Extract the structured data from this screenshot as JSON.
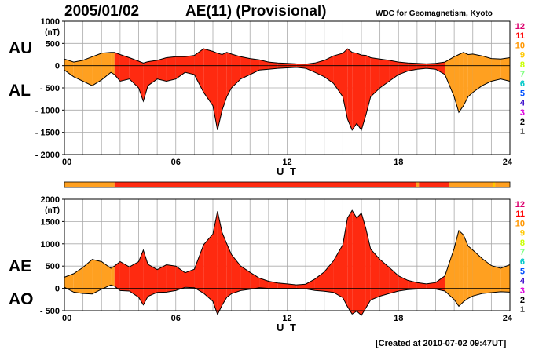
{
  "header": {
    "date": "2005/01/02",
    "index_title": "AE(11) (Provisional)",
    "org": "WDC for Geomagnetism, Kyoto",
    "created": "[Created at 2010-07-02 09:47UT]"
  },
  "colors": {
    "levels": [
      "#c8c8c8",
      "#646464",
      "#000000",
      "#dc00dc",
      "#3200c8",
      "#0050ff",
      "#00c8c8",
      "#80ff80",
      "#c8ff00",
      "#ffc800",
      "#ff9600",
      "#ff0000",
      "#dc006e"
    ],
    "fill_10": "#ffa020",
    "fill_11": "#ff2a10",
    "grid": "#aaaaaa"
  },
  "level_scale": [
    "12",
    "11",
    "10",
    "9",
    "8",
    "7",
    "6",
    "5",
    "4",
    "3",
    "2",
    "1"
  ],
  "chart_data": [
    {
      "type": "area",
      "panel": "AU/AL",
      "side_labels": [
        "AU",
        "AL"
      ],
      "y_unit": "(nT)",
      "ylim": [
        -2000,
        1000
      ],
      "yticks": [
        1000,
        500,
        0,
        -500,
        -1000,
        -1500,
        -2000
      ],
      "ytick_labels": [
        "1000",
        "500",
        "0",
        "- 500",
        "- 1000",
        "- 1500",
        "- 2000"
      ],
      "xlim": [
        0,
        24
      ],
      "xticks": [
        0,
        6,
        12,
        18,
        24
      ],
      "xtick_labels": [
        "00",
        "06",
        "12",
        "18",
        "24"
      ],
      "xlabel": "U T",
      "grid": true,
      "x": [
        0,
        0.5,
        1,
        1.5,
        2,
        2.5,
        2.7,
        3,
        3.5,
        4,
        4.25,
        4.5,
        5,
        5.5,
        6,
        6.5,
        7,
        7.5,
        8,
        8.25,
        8.5,
        8.75,
        9,
        9.5,
        10,
        10.5,
        11,
        11.5,
        12,
        12.5,
        13,
        13.5,
        14,
        14.5,
        15,
        15.25,
        15.5,
        15.75,
        16,
        16.25,
        16.5,
        17,
        17.5,
        18,
        18.5,
        19,
        19.5,
        20,
        20.5,
        21,
        21.25,
        21.5,
        21.75,
        22,
        22.5,
        23,
        23.5,
        24
      ],
      "series": [
        {
          "name": "AU",
          "values": [
            150,
            80,
            120,
            200,
            280,
            300,
            300,
            250,
            180,
            100,
            60,
            90,
            120,
            180,
            200,
            200,
            230,
            380,
            320,
            280,
            250,
            300,
            260,
            200,
            160,
            130,
            80,
            60,
            50,
            40,
            35,
            60,
            120,
            220,
            280,
            380,
            300,
            280,
            240,
            230,
            180,
            150,
            120,
            80,
            60,
            50,
            40,
            50,
            80,
            200,
            250,
            300,
            250,
            260,
            220,
            160,
            150,
            180
          ]
        },
        {
          "name": "AL",
          "values": [
            -100,
            -250,
            -350,
            -450,
            -320,
            -150,
            -200,
            -350,
            -300,
            -500,
            -800,
            -450,
            -300,
            -350,
            -300,
            -150,
            -200,
            -600,
            -900,
            -1450,
            -1000,
            -700,
            -500,
            -300,
            -200,
            -100,
            -80,
            -60,
            -50,
            -40,
            -60,
            -150,
            -250,
            -400,
            -700,
            -1200,
            -1450,
            -1300,
            -1450,
            -1100,
            -700,
            -500,
            -350,
            -200,
            -120,
            -80,
            -60,
            -80,
            -200,
            -700,
            -1050,
            -900,
            -700,
            -600,
            -450,
            -350,
            -300,
            -350
          ]
        }
      ]
    },
    {
      "type": "area",
      "panel": "AE/AO",
      "side_labels": [
        "AE",
        "AO"
      ],
      "y_unit": "(nT)",
      "ylim": [
        -500,
        2000
      ],
      "yticks": [
        2000,
        1500,
        1000,
        500,
        0,
        -500
      ],
      "ytick_labels": [
        "2000",
        "1500",
        "1000",
        "500",
        "0",
        "- 500"
      ],
      "xlim": [
        0,
        24
      ],
      "xticks": [
        0,
        6,
        12,
        18,
        24
      ],
      "xtick_labels": [
        "00",
        "06",
        "12",
        "18",
        "24"
      ],
      "xlabel": "U T",
      "grid": true,
      "x": [
        0,
        0.5,
        1,
        1.5,
        2,
        2.5,
        2.7,
        3,
        3.5,
        4,
        4.25,
        4.5,
        5,
        5.5,
        6,
        6.5,
        7,
        7.5,
        8,
        8.25,
        8.5,
        8.75,
        9,
        9.5,
        10,
        10.5,
        11,
        11.5,
        12,
        12.5,
        13,
        13.5,
        14,
        14.5,
        15,
        15.25,
        15.5,
        15.75,
        16,
        16.25,
        16.5,
        17,
        17.5,
        18,
        18.5,
        19,
        19.5,
        20,
        20.5,
        21,
        21.25,
        21.5,
        21.75,
        22,
        22.5,
        23,
        23.5,
        24
      ],
      "series": [
        {
          "name": "AE",
          "values": [
            250,
            330,
            470,
            650,
            600,
            450,
            500,
            600,
            480,
            600,
            860,
            540,
            420,
            530,
            500,
            350,
            430,
            980,
            1220,
            1730,
            1250,
            1000,
            760,
            500,
            360,
            230,
            160,
            120,
            100,
            80,
            95,
            210,
            370,
            620,
            980,
            1580,
            1750,
            1580,
            1690,
            1330,
            880,
            650,
            470,
            280,
            180,
            130,
            100,
            130,
            280,
            900,
            1300,
            1200,
            950,
            860,
            670,
            510,
            450,
            530
          ]
        },
        {
          "name": "AO",
          "values": [
            25,
            -85,
            -115,
            -125,
            -20,
            75,
            50,
            -50,
            -60,
            -200,
            -370,
            -180,
            -90,
            -85,
            -50,
            25,
            15,
            -110,
            -290,
            -585,
            -375,
            -200,
            -120,
            -50,
            -20,
            15,
            0,
            0,
            0,
            0,
            -12,
            -45,
            -65,
            -90,
            -210,
            -410,
            -575,
            -510,
            -605,
            -435,
            -260,
            -175,
            -115,
            -60,
            -30,
            -15,
            -10,
            -15,
            -60,
            -250,
            -400,
            -300,
            -225,
            -170,
            -115,
            -95,
            -75,
            -85
          ]
        }
      ]
    }
  ],
  "activity_bar": {
    "segments": [
      {
        "from": 0,
        "to": 2.7,
        "level": 10
      },
      {
        "from": 2.7,
        "to": 18.95,
        "level": 11
      },
      {
        "from": 18.95,
        "to": 19.1,
        "level": 10
      },
      {
        "from": 19.1,
        "to": 20.7,
        "level": 11
      },
      {
        "from": 20.7,
        "to": 23.1,
        "level": 10
      },
      {
        "from": 23.1,
        "to": 23.2,
        "level": 9
      },
      {
        "from": 23.2,
        "to": 24,
        "level": 10
      }
    ]
  }
}
